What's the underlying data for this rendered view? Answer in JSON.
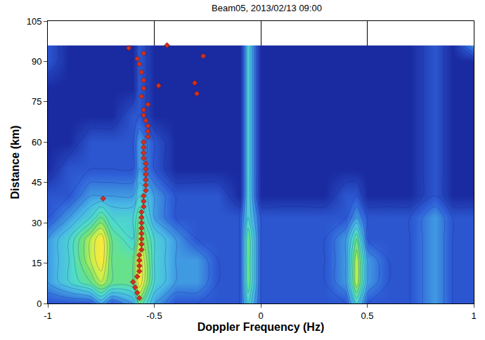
{
  "chart_data": {
    "type": "contour",
    "title": "Beam05, 2013/02/13 09:00",
    "x_label": "Doppler Frequency (Hz)",
    "y_label": "Distance (km)",
    "xlim": [
      -1,
      1
    ],
    "xticks": [
      -1,
      -0.5,
      0,
      0.5,
      1
    ],
    "ylim": [
      0,
      105
    ],
    "yticks": [
      0,
      15,
      30,
      45,
      60,
      75,
      90,
      105
    ],
    "grid": true,
    "x": [
      -1,
      -0.9,
      -0.8,
      -0.75,
      -0.7,
      -0.6,
      -0.57,
      -0.5,
      -0.4,
      -0.3,
      -0.2,
      -0.1,
      -0.06,
      0,
      0.1,
      0.2,
      0.3,
      0.4,
      0.45,
      0.5,
      0.6,
      0.7,
      0.82,
      0.9,
      1
    ],
    "y": [
      0,
      8,
      16,
      24,
      32,
      40,
      50,
      60,
      70,
      80,
      90,
      96
    ],
    "z": [
      [
        3,
        3,
        3,
        4,
        3,
        4,
        6,
        4,
        3,
        3,
        3,
        3,
        5,
        3,
        3,
        3,
        3,
        3,
        5,
        3,
        3,
        3,
        4,
        3,
        3
      ],
      [
        4,
        5,
        6,
        7,
        6,
        6,
        8,
        5,
        4,
        4,
        3,
        3,
        6,
        3,
        3,
        3,
        3,
        4,
        7,
        4,
        3,
        3,
        4,
        3,
        3
      ],
      [
        4,
        5,
        7,
        8,
        6,
        6,
        8,
        5,
        4,
        4,
        3,
        3,
        6,
        3,
        3,
        3,
        3,
        4,
        7,
        4,
        3,
        3,
        4,
        3,
        3
      ],
      [
        4,
        5,
        7,
        8,
        6,
        5,
        7,
        5,
        4,
        3,
        3,
        3,
        6,
        3,
        3,
        3,
        3,
        4,
        6,
        3,
        3,
        3,
        4,
        3,
        3
      ],
      [
        3,
        4,
        5,
        6,
        5,
        5,
        6,
        4,
        3,
        3,
        3,
        3,
        5,
        3,
        3,
        3,
        3,
        3,
        4,
        3,
        3,
        3,
        4,
        3,
        3
      ],
      [
        3,
        3,
        4,
        4,
        4,
        4,
        5,
        4,
        3,
        3,
        3,
        2,
        5,
        2,
        2,
        2,
        2,
        3,
        3,
        2,
        2,
        2,
        3,
        2,
        2
      ],
      [
        2,
        3,
        3,
        3,
        3,
        3,
        4,
        3,
        2,
        2,
        2,
        2,
        5,
        2,
        2,
        2,
        2,
        2,
        2,
        2,
        2,
        2,
        3,
        2,
        2
      ],
      [
        2,
        2,
        3,
        3,
        3,
        3,
        4,
        3,
        2,
        2,
        2,
        2,
        5,
        2,
        2,
        2,
        2,
        2,
        2,
        2,
        2,
        2,
        3,
        2,
        2
      ],
      [
        2,
        2,
        2,
        2,
        2,
        3,
        3,
        2,
        2,
        2,
        2,
        2,
        5,
        2,
        2,
        2,
        2,
        2,
        2,
        2,
        2,
        2,
        3,
        2,
        2
      ],
      [
        2,
        2,
        2,
        2,
        2,
        2,
        3,
        2,
        2,
        2,
        2,
        2,
        5,
        2,
        2,
        2,
        2,
        2,
        2,
        2,
        2,
        2,
        3,
        2,
        2
      ],
      [
        3,
        2,
        2,
        2,
        2,
        2,
        3,
        2,
        2,
        2,
        2,
        2,
        5,
        2,
        2,
        2,
        2,
        2,
        2,
        2,
        2,
        2,
        3,
        2,
        2
      ],
      [
        3,
        2,
        2,
        2,
        2,
        2,
        3,
        2,
        2,
        2,
        2,
        2,
        5,
        2,
        2,
        2,
        2,
        2,
        2,
        2,
        2,
        2,
        3,
        2,
        4
      ]
    ],
    "points": {
      "color": "#d03020",
      "marker": "diamond",
      "x": [
        -0.57,
        -0.58,
        -0.59,
        -0.6,
        -0.58,
        -0.57,
        -0.57,
        -0.57,
        -0.57,
        -0.56,
        -0.56,
        -0.56,
        -0.56,
        -0.56,
        -0.56,
        -0.56,
        -0.56,
        -0.55,
        -0.55,
        -0.74,
        -0.55,
        -0.54,
        -0.54,
        -0.54,
        -0.54,
        -0.54,
        -0.54,
        -0.55,
        -0.55,
        -0.55,
        -0.55,
        -0.53,
        -0.53,
        -0.53,
        -0.54,
        -0.55,
        -0.55,
        -0.53,
        -0.56,
        -0.48,
        -0.31,
        -0.3,
        -0.55,
        -0.55,
        -0.56,
        -0.57,
        -0.58,
        -0.55,
        -0.62,
        -0.44,
        -0.27
      ],
      "y": [
        2,
        4,
        6,
        8,
        10,
        12,
        14,
        16,
        18,
        20,
        22,
        24,
        26,
        28,
        30,
        32,
        34,
        36,
        38,
        39,
        40,
        42,
        44,
        46,
        48,
        50,
        52,
        54,
        56,
        58,
        60,
        62,
        64,
        66,
        68,
        70,
        72,
        74,
        77,
        81,
        82,
        78,
        80,
        83,
        86,
        89,
        91,
        93,
        95,
        96,
        92
      ]
    }
  }
}
